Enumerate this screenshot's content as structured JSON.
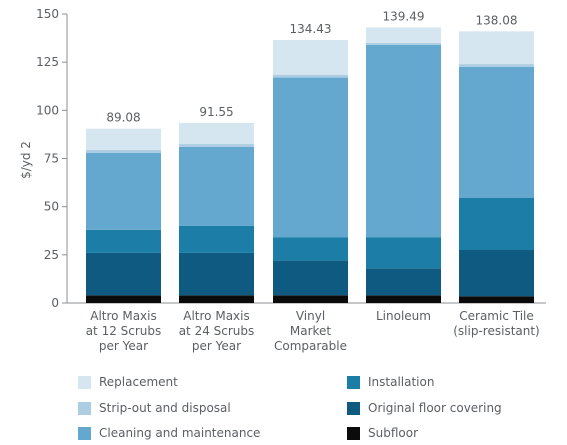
{
  "chart_data": {
    "type": "bar",
    "stacked": true,
    "ylabel": "$/yd 2",
    "ylim": [
      0,
      150
    ],
    "yticks": [
      0,
      25,
      50,
      75,
      100,
      125,
      150
    ],
    "categories": [
      [
        "Altro Maxis",
        "at 12 Scrubs",
        "per Year"
      ],
      [
        "Altro Maxis",
        "at 24 Scrubs",
        "per Year"
      ],
      [
        "Vinyl",
        "Market",
        "Comparable"
      ],
      [
        "Linoleum"
      ],
      [
        "Ceramic Tile",
        "(slip-resistant)"
      ]
    ],
    "totals_labels": [
      "89.08",
      "91.55",
      "134.43",
      "139.49",
      "138.08"
    ],
    "series": [
      {
        "name": "Subfloor",
        "color": "#0b0b0b",
        "values": [
          4,
          4,
          4,
          4,
          3.5
        ]
      },
      {
        "name": "Original floor covering",
        "color": "#0f5a80",
        "values": [
          22,
          22,
          18,
          14,
          24
        ]
      },
      {
        "name": "Installation",
        "color": "#1c7ea6",
        "values": [
          12,
          14,
          12,
          16,
          27
        ]
      },
      {
        "name": "Cleaning and maintenance",
        "color": "#65a8cf",
        "values": [
          40,
          41,
          83,
          100,
          68
        ]
      },
      {
        "name": "Strip-out and disposal",
        "color": "#adcde3",
        "values": [
          1.5,
          1.5,
          1.5,
          1,
          1.5
        ]
      },
      {
        "name": "Replacement",
        "color": "#d5e6f1",
        "values": [
          11,
          11,
          18,
          8,
          17
        ]
      }
    ],
    "grid": false,
    "legend": "bottom"
  },
  "legend": {
    "items": [
      {
        "label": "Replacement",
        "color": "#d5e6f1"
      },
      {
        "label": "Strip-out and disposal",
        "color": "#adcde3"
      },
      {
        "label": "Cleaning and maintenance",
        "color": "#65a8cf"
      },
      {
        "label": "Installation",
        "color": "#1c7ea6"
      },
      {
        "label": "Original floor covering",
        "color": "#0f5a80"
      },
      {
        "label": "Subfloor",
        "color": "#0b0b0b"
      }
    ]
  }
}
